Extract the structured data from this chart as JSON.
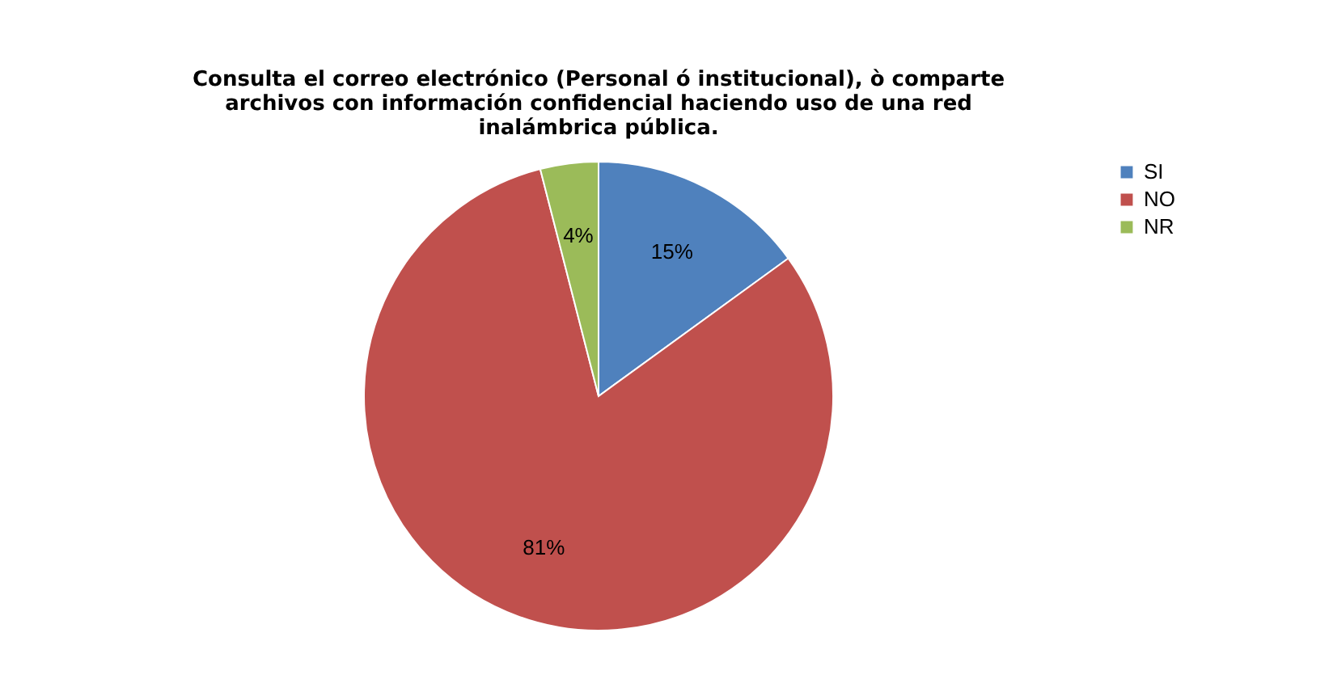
{
  "chart_data": {
    "type": "pie",
    "title": "Consulta el correo electrónico (Personal ó institucional), ò comparte archivos con información confidencial haciendo uso de una red inalámbrica pública.",
    "categories": [
      "SI",
      "NO",
      "NR"
    ],
    "values": [
      15,
      81,
      4
    ],
    "value_labels": [
      "15%",
      "81%",
      "4%"
    ],
    "colors": [
      "#4f81bd",
      "#c0504d",
      "#9bbb59"
    ],
    "legend": "right"
  }
}
